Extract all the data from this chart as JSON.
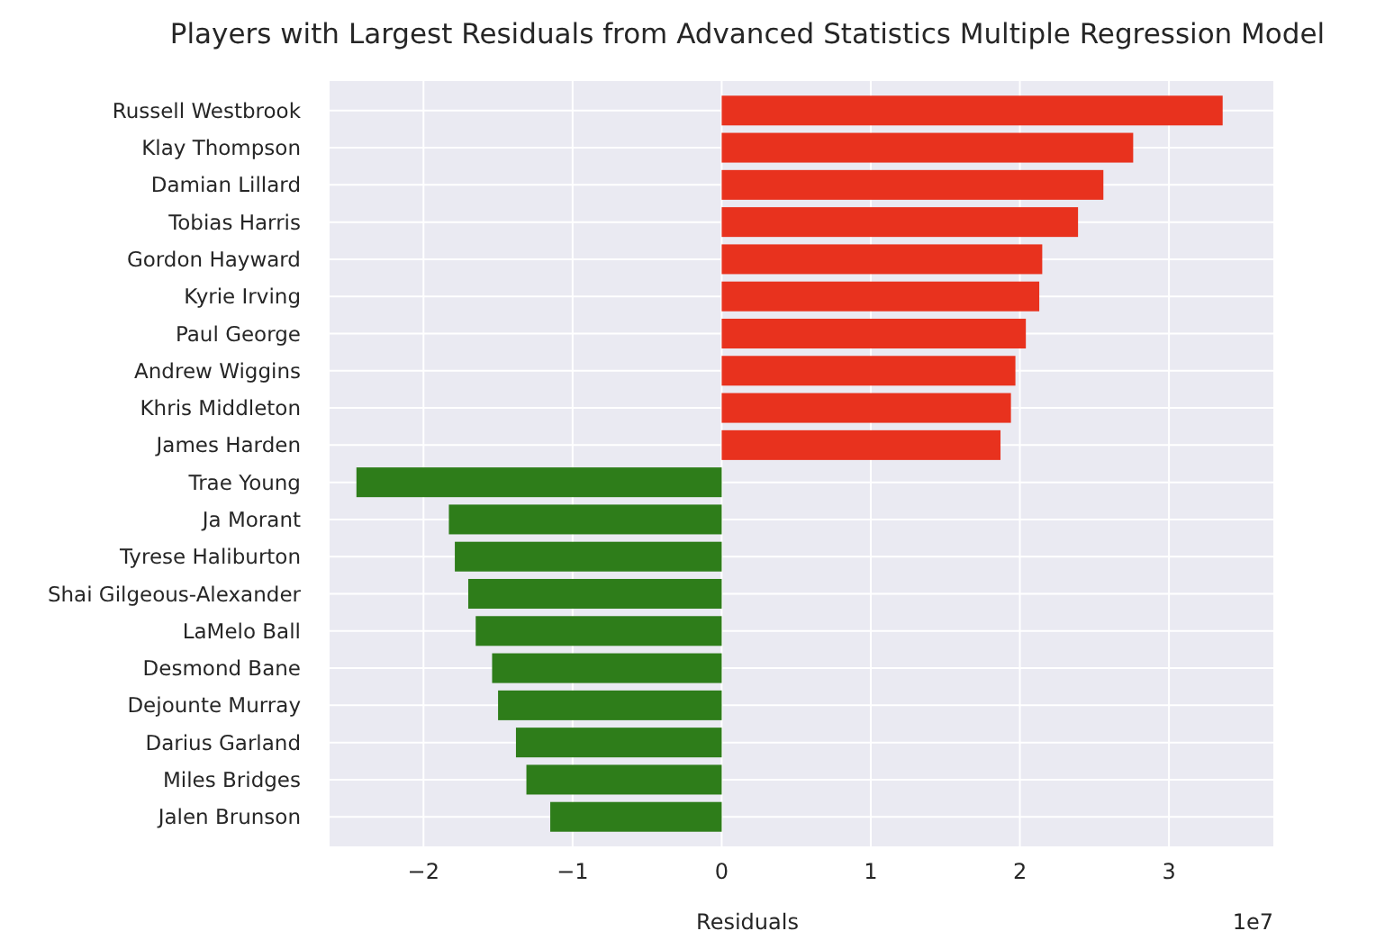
{
  "chart_data": {
    "type": "bar",
    "orientation": "horizontal",
    "title": "Players with Largest Residuals from Advanced Statistics Multiple Regression Model",
    "xlabel": "Residuals",
    "categories": [
      "Russell Westbrook",
      "Klay Thompson",
      "Damian Lillard",
      "Tobias Harris",
      "Gordon Hayward",
      "Kyrie Irving",
      "Paul George",
      "Andrew Wiggins",
      "Khris Middleton",
      "James Harden",
      "Trae Young",
      "Ja Morant",
      "Tyrese Haliburton",
      "Shai Gilgeous-Alexander",
      "LaMelo Ball",
      "Desmond Bane",
      "Dejounte Murray",
      "Darius Garland",
      "Miles Bridges",
      "Jalen Brunson"
    ],
    "values": [
      3.36,
      2.76,
      2.56,
      2.39,
      2.15,
      2.13,
      2.04,
      1.97,
      1.94,
      1.87,
      -2.45,
      -1.83,
      -1.79,
      -1.7,
      -1.65,
      -1.54,
      -1.5,
      -1.38,
      -1.31,
      -1.15
    ],
    "colors": [
      "#e8321e",
      "#e8321e",
      "#e8321e",
      "#e8321e",
      "#e8321e",
      "#e8321e",
      "#e8321e",
      "#e8321e",
      "#e8321e",
      "#e8321e",
      "#2e7d1a",
      "#2e7d1a",
      "#2e7d1a",
      "#2e7d1a",
      "#2e7d1a",
      "#2e7d1a",
      "#2e7d1a",
      "#2e7d1a",
      "#2e7d1a",
      "#2e7d1a"
    ],
    "xlim": [
      -2.63,
      3.7
    ],
    "xticks": [
      -2,
      -1,
      0,
      1,
      2,
      3
    ],
    "grid": true,
    "annotations": [
      "1e7"
    ]
  }
}
